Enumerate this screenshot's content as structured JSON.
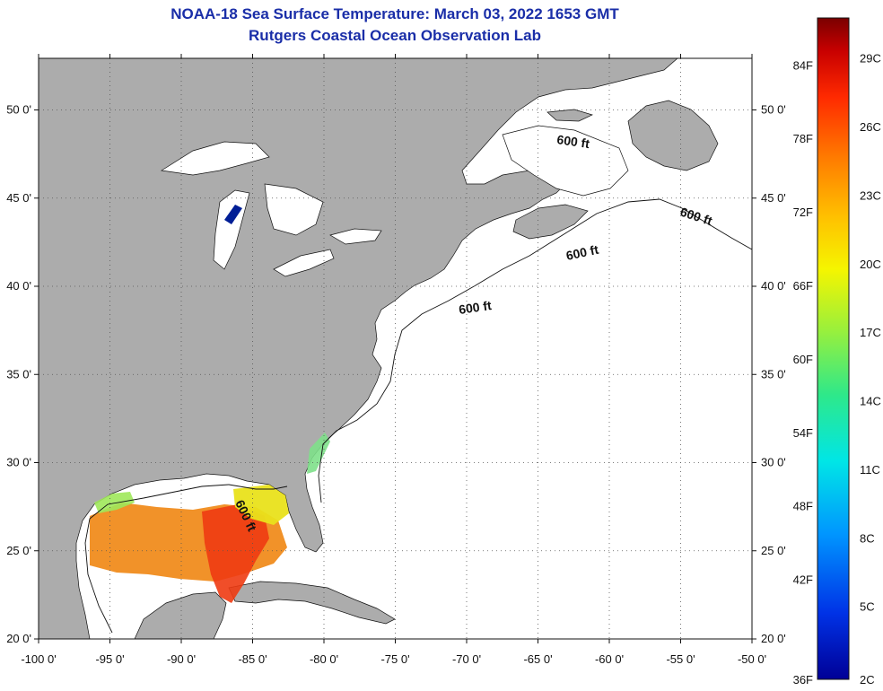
{
  "title": "NOAA-18 Sea Surface Temperature:  March 03, 2022 1653 GMT",
  "subtitle": "Rutgers Coastal Ocean Observation Lab",
  "lat_labels": [
    "50 0'",
    "45 0'",
    "40 0'",
    "35 0'",
    "30 0'",
    "25 0'",
    "20 0'"
  ],
  "lon_labels": [
    "-100 0'",
    "-95 0'",
    "-90 0'",
    "-85 0'",
    "-80 0'",
    "-75 0'",
    "-70 0'",
    "-65 0'",
    "-60 0'",
    "-55 0'",
    "-50 0'"
  ],
  "contour_label": "600 ft",
  "colorbar": {
    "f_labels": [
      "84F",
      "78F",
      "72F",
      "66F",
      "60F",
      "54F",
      "48F",
      "42F",
      "36F"
    ],
    "c_labels": [
      "29C",
      "26C",
      "23C",
      "20C",
      "17C",
      "14C",
      "11C",
      "8C",
      "5C",
      "2C"
    ],
    "colors": [
      "#7a0000",
      "#c80000",
      "#ff2a00",
      "#ff7a00",
      "#ffc000",
      "#f5f500",
      "#9cf03a",
      "#2ee88a",
      "#00e6e6",
      "#0096ff",
      "#0032e6",
      "#000096"
    ]
  },
  "colors": {
    "land": "#acacac",
    "water": "#ffffff",
    "title": "#1a2ea8"
  }
}
